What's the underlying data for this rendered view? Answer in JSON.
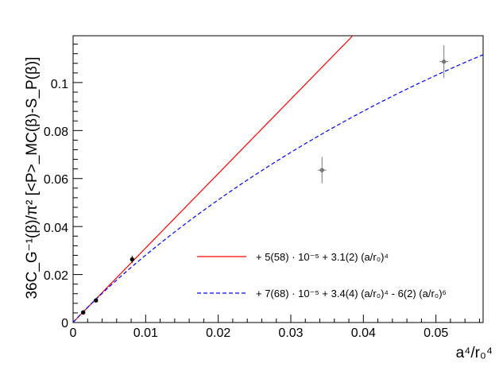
{
  "chart_data": {
    "type": "scatter",
    "xlabel": "a⁴/r₀⁴",
    "ylabel": "36C_G⁻¹(β)/π² [<P>_MC(β)-S_P(β)]",
    "xlim": [
      0,
      0.0565
    ],
    "ylim": [
      0,
      0.1195
    ],
    "x_ticks": [
      0,
      0.01,
      0.02,
      0.03,
      0.04,
      0.05
    ],
    "x_tick_labels": [
      "0",
      "0.01",
      "0.02",
      "0.03",
      "0.04",
      "0.05"
    ],
    "y_ticks": [
      0,
      0.02,
      0.04,
      0.06,
      0.08,
      0.1
    ],
    "y_tick_labels": [
      "0",
      "0.02",
      "0.04",
      "0.06",
      "0.08",
      "0.1"
    ],
    "grid": false,
    "legend_placement": "bottom-right",
    "points": [
      {
        "x": 0.00139,
        "y": 0.0042,
        "xerr": 0.0,
        "yerr": 0.0003,
        "color": "#000000"
      },
      {
        "x": 0.00315,
        "y": 0.0092,
        "xerr": 0.0,
        "yerr": 0.0004,
        "color": "#000000"
      },
      {
        "x": 0.00814,
        "y": 0.0263,
        "xerr": 0.0,
        "yerr": 0.0015,
        "color": "#000000"
      },
      {
        "x": 0.0343,
        "y": 0.0635,
        "xerr": 0.0006,
        "yerr": 0.0055,
        "color": "#777777"
      },
      {
        "x": 0.0511,
        "y": 0.1087,
        "xerr": 0.0006,
        "yerr": 0.0068,
        "color": "#777777"
      }
    ],
    "series": [
      {
        "label": "+ 5(58) · 10⁻⁵ + 3.1(2) (a/r₀)⁴",
        "style": "solid",
        "color": "#ff0000",
        "model": "linear",
        "coefficients": {
          "c0": 5e-05,
          "c1": 3.1
        }
      },
      {
        "label": "+ 7(68) · 10⁻⁵ + 3.4(4) (a/r₀)⁴ - 6(2) (a/r₀)⁶",
        "style": "dashed",
        "color": "#0000ff",
        "model": "fit_u_plus_u_1_5",
        "coefficients": {
          "c0": 7e-05,
          "c1": 3.4,
          "c2": -6.0
        }
      }
    ]
  }
}
